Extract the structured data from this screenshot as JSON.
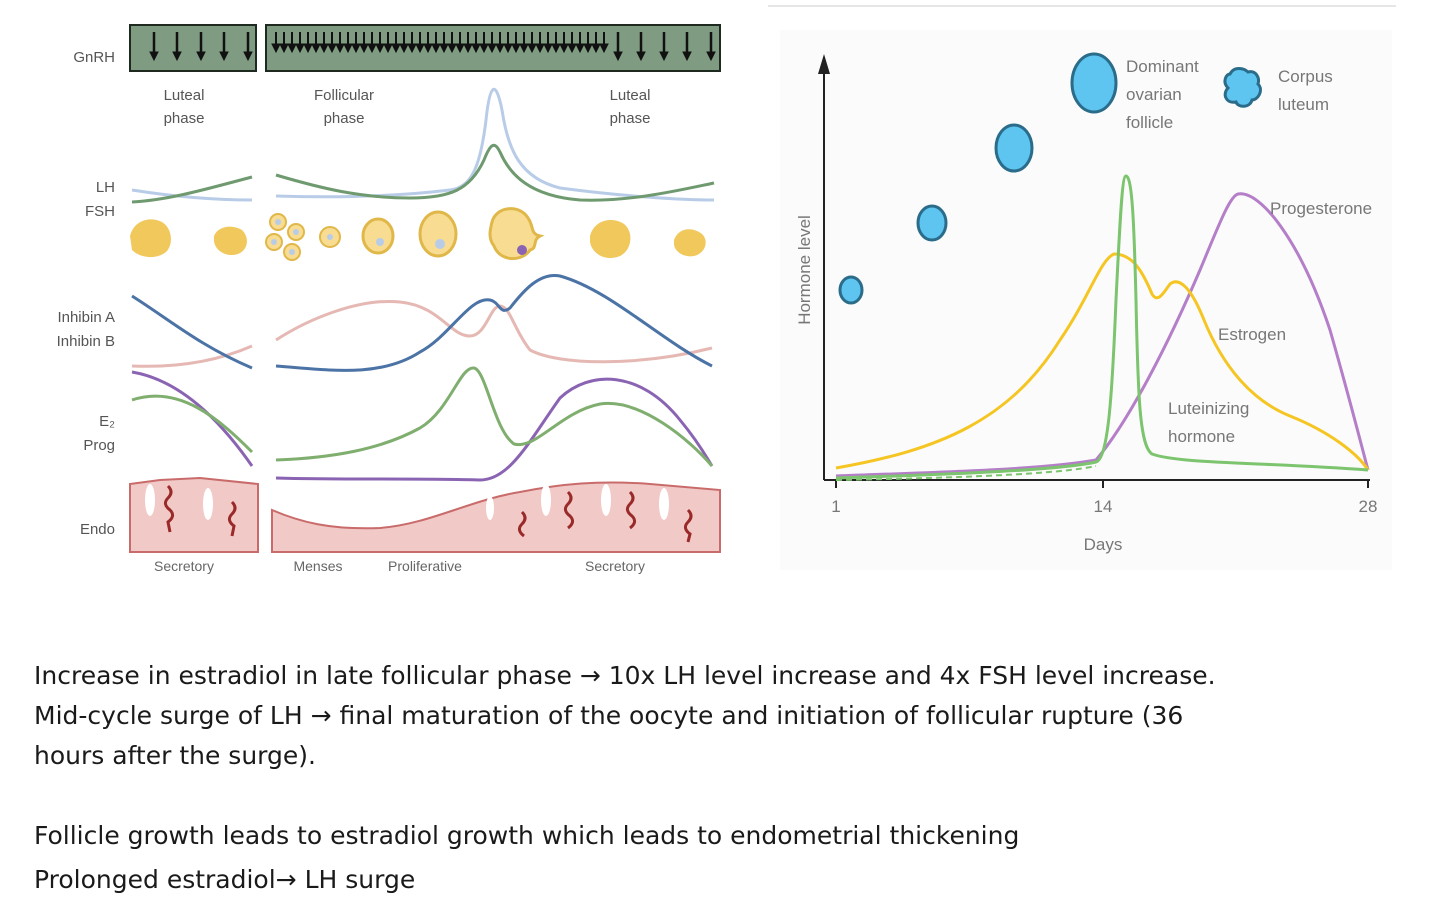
{
  "left_diagram": {
    "row_labels": {
      "gnrh": "GnRH",
      "lh": "LH",
      "fsh": "FSH",
      "inhibin_a": "Inhibin A",
      "inhibin_b": "Inhibin B",
      "e2": "E₂",
      "prog": "Prog",
      "endo": "Endo"
    },
    "phase_labels": {
      "luteal_left": [
        "Luteal",
        "phase"
      ],
      "follicular": [
        "Follicular",
        "phase"
      ],
      "luteal_right": [
        "Luteal",
        "phase"
      ]
    },
    "endometrium_labels": {
      "secretory_left": "Secretory",
      "menses": "Menses",
      "proliferative": "Proliferative",
      "secretory_right": "Secretory"
    },
    "colors": {
      "gnrh_bar": "#7f9c82",
      "lh": "#6f9a6f",
      "fsh": "#b8cce8",
      "inhibin_a": "#e5b8b4",
      "inhibin_b": "#4b73a6",
      "e2": "#7fae6f",
      "prog": "#8a64b3",
      "follicle": "#f0c85c",
      "endometrium": "#f1c9c6",
      "endometrium_edge": "#c96b6b",
      "gland": "#9a2a2a"
    }
  },
  "right_diagram": {
    "y_axis_label": "Hormone level",
    "x_axis_label": "Days",
    "x_ticks": [
      "1",
      "14",
      "28"
    ],
    "follicle_labels": {
      "dominant": [
        "Dominant",
        "ovarian",
        "follicle"
      ],
      "corpus": [
        "Corpus",
        "luteum"
      ]
    },
    "curve_labels": {
      "progesterone": "Progesterone",
      "estrogen": "Estrogen",
      "lh": [
        "Luteinizing",
        "hormone"
      ]
    },
    "colors": {
      "estrogen": "#f5c623",
      "lh": "#7cc46e",
      "progesterone": "#b47ec8",
      "follicle_fill": "#5ec4f0",
      "follicle_stroke": "#2a6c8a"
    }
  },
  "notes": {
    "line1": "Increase in estradiol in late follicular phase → 10x LH level increase and 4x FSH level increase.",
    "line2": "Mid-cycle surge of LH → final maturation of the oocyte and initiation of follicular rupture (36",
    "line3": "hours after the surge).",
    "line4": "Follicle growth leads to estradiol growth which leads to endometrial thickening",
    "line5": "Prolonged estradiol→ LH surge"
  }
}
